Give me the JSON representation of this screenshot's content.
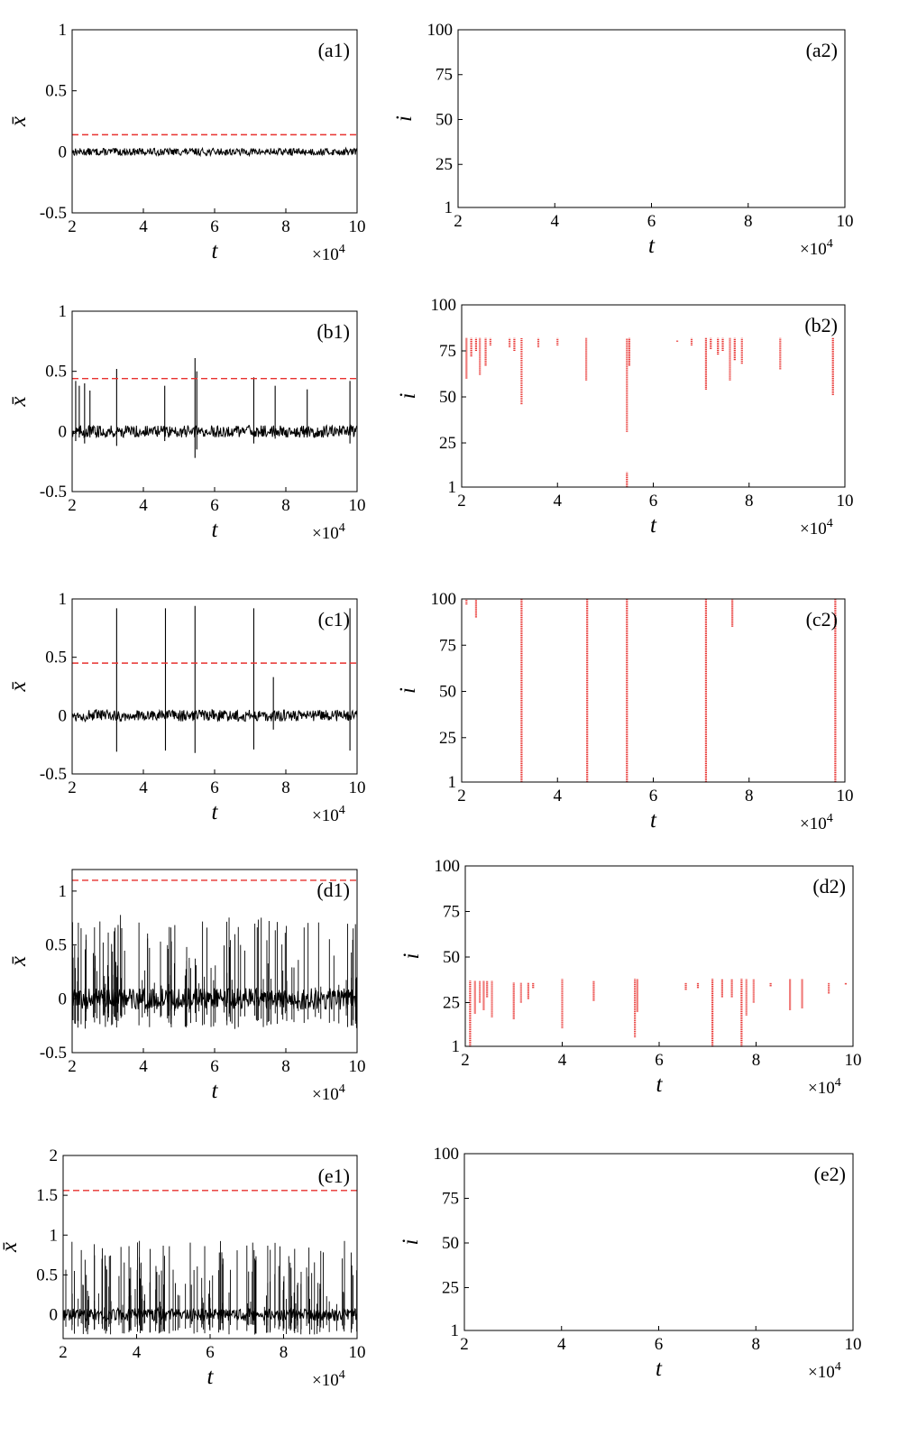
{
  "figure": {
    "signal_color": "#000000",
    "threshold_color": "#e8312f",
    "event_color": "#e8312f"
  },
  "chart_data": [
    {
      "id": "a1",
      "type": "line",
      "label": "(a1)",
      "xlabel": "t",
      "ylabel": "x̄",
      "x_multiplier": "×10",
      "x_multiplier_exp": "4",
      "xlim": [
        2,
        10
      ],
      "ylim": [
        -0.5,
        1
      ],
      "xticks": [
        "2",
        "4",
        "6",
        "8",
        "10"
      ],
      "xtick_values": [
        2,
        4,
        6,
        8,
        10
      ],
      "yticks": [
        "-0.5",
        "0",
        "0.5",
        "1"
      ],
      "ytick_values": [
        -0.5,
        0,
        0.5,
        1
      ],
      "threshold": 0.14,
      "noise": 0.03,
      "spikes": []
    },
    {
      "id": "a2",
      "type": "scatter",
      "label": "(a2)",
      "xlabel": "t",
      "ylabel": "i",
      "x_multiplier": "×10",
      "x_multiplier_exp": "4",
      "xlim": [
        2,
        10
      ],
      "ylim": [
        1,
        100
      ],
      "xticks": [
        "2",
        "4",
        "6",
        "8",
        "10"
      ],
      "xtick_values": [
        2,
        4,
        6,
        8,
        10
      ],
      "yticks": [
        "1",
        "25",
        "50",
        "75",
        "100"
      ],
      "ytick_values": [
        1,
        25,
        50,
        75,
        100
      ],
      "events": []
    },
    {
      "id": "b1",
      "type": "line",
      "label": "(b1)",
      "xlabel": "t",
      "ylabel": "x̄",
      "x_multiplier": "×10",
      "x_multiplier_exp": "4",
      "xlim": [
        2,
        10
      ],
      "ylim": [
        -0.5,
        1
      ],
      "xticks": [
        "2",
        "4",
        "6",
        "8",
        "10"
      ],
      "xtick_values": [
        2,
        4,
        6,
        8,
        10
      ],
      "yticks": [
        "-0.5",
        "0",
        "0.5",
        "1"
      ],
      "ytick_values": [
        -0.5,
        0,
        0.5,
        1
      ],
      "threshold": 0.44,
      "noise": 0.05,
      "spikes": [
        [
          2.1,
          0.42,
          -0.08
        ],
        [
          2.2,
          0.38,
          -0.05
        ],
        [
          2.35,
          0.4,
          -0.1
        ],
        [
          2.5,
          0.34,
          -0.05
        ],
        [
          3.25,
          0.52,
          -0.12
        ],
        [
          4.6,
          0.38,
          -0.08
        ],
        [
          5.45,
          0.61,
          -0.22
        ],
        [
          5.5,
          0.5,
          -0.15
        ],
        [
          7.1,
          0.45,
          -0.1
        ],
        [
          7.7,
          0.38,
          -0.06
        ],
        [
          8.6,
          0.35,
          -0.05
        ],
        [
          9.8,
          0.42,
          -0.1
        ]
      ]
    },
    {
      "id": "b2",
      "type": "scatter",
      "label": "(b2)",
      "xlabel": "t",
      "ylabel": "i",
      "x_multiplier": "×10",
      "x_multiplier_exp": "4",
      "xlim": [
        2,
        10
      ],
      "ylim": [
        1,
        100
      ],
      "xticks": [
        "2",
        "4",
        "6",
        "8",
        "10"
      ],
      "xtick_values": [
        2,
        4,
        6,
        8,
        10
      ],
      "yticks": [
        "1",
        "25",
        "50",
        "75",
        "100"
      ],
      "ytick_values": [
        1,
        25,
        50,
        75,
        100
      ],
      "events": [
        [
          2.1,
          60,
          82
        ],
        [
          2.2,
          72,
          82
        ],
        [
          2.3,
          75,
          82
        ],
        [
          2.38,
          62,
          82
        ],
        [
          2.5,
          67,
          82
        ],
        [
          2.6,
          78,
          82
        ],
        [
          3.0,
          77,
          82
        ],
        [
          3.1,
          75,
          82
        ],
        [
          3.25,
          46,
          82
        ],
        [
          3.6,
          77,
          82
        ],
        [
          4.0,
          78,
          82
        ],
        [
          4.6,
          59,
          82
        ],
        [
          5.45,
          31,
          82
        ],
        [
          5.5,
          67,
          82
        ],
        [
          5.45,
          1,
          9
        ],
        [
          6.5,
          80,
          81
        ],
        [
          6.8,
          78,
          82
        ],
        [
          7.1,
          54,
          82
        ],
        [
          7.2,
          76,
          82
        ],
        [
          7.35,
          73,
          82
        ],
        [
          7.45,
          75,
          82
        ],
        [
          7.6,
          59,
          82
        ],
        [
          7.7,
          70,
          82
        ],
        [
          7.85,
          68,
          82
        ],
        [
          8.65,
          65,
          82
        ],
        [
          9.75,
          51,
          82
        ]
      ]
    },
    {
      "id": "c1",
      "type": "line",
      "label": "(c1)",
      "xlabel": "t",
      "ylabel": "x̄",
      "x_multiplier": "×10",
      "x_multiplier_exp": "4",
      "xlim": [
        2,
        10
      ],
      "ylim": [
        -0.5,
        1
      ],
      "xticks": [
        "2",
        "4",
        "6",
        "8",
        "10"
      ],
      "xtick_values": [
        2,
        4,
        6,
        8,
        10
      ],
      "yticks": [
        "-0.5",
        "0",
        "0.5",
        "1"
      ],
      "ytick_values": [
        -0.5,
        0,
        0.5,
        1
      ],
      "threshold": 0.45,
      "noise": 0.05,
      "spikes": [
        [
          3.25,
          0.92,
          -0.31
        ],
        [
          4.62,
          0.92,
          -0.3
        ],
        [
          5.45,
          0.94,
          -0.32
        ],
        [
          7.1,
          0.92,
          -0.29
        ],
        [
          7.65,
          0.33,
          -0.12
        ],
        [
          9.8,
          0.92,
          -0.3
        ]
      ]
    },
    {
      "id": "c2",
      "type": "scatter",
      "label": "(c2)",
      "xlabel": "t",
      "ylabel": "i",
      "x_multiplier": "×10",
      "x_multiplier_exp": "4",
      "xlim": [
        2,
        10
      ],
      "ylim": [
        1,
        100
      ],
      "xticks": [
        "2",
        "4",
        "6",
        "8",
        "10"
      ],
      "xtick_values": [
        2,
        4,
        6,
        8,
        10
      ],
      "yticks": [
        "1",
        "25",
        "50",
        "75",
        "100"
      ],
      "ytick_values": [
        1,
        25,
        50,
        75,
        100
      ],
      "events": [
        [
          2.1,
          97,
          100
        ],
        [
          2.3,
          90,
          100
        ],
        [
          3.25,
          1,
          100
        ],
        [
          4.62,
          1,
          100
        ],
        [
          5.45,
          1,
          100
        ],
        [
          7.1,
          1,
          100
        ],
        [
          7.65,
          85,
          100
        ],
        [
          9.8,
          1,
          100
        ]
      ]
    },
    {
      "id": "d1",
      "type": "line",
      "label": "(d1)",
      "xlabel": "t",
      "ylabel": "x̄",
      "x_multiplier": "×10",
      "x_multiplier_exp": "4",
      "xlim": [
        2,
        10
      ],
      "ylim": [
        -0.5,
        1.2
      ],
      "xticks": [
        "2",
        "4",
        "6",
        "8",
        "10"
      ],
      "xtick_values": [
        2,
        4,
        6,
        8,
        10
      ],
      "yticks": [
        "-0.5",
        "0",
        "0.5",
        "1"
      ],
      "ytick_values": [
        -0.5,
        0,
        0.5,
        1
      ],
      "threshold": 1.1,
      "noise": 0.1,
      "spike_rate": 120,
      "spike_max": 0.78,
      "spike_min": -0.28,
      "spikes": []
    },
    {
      "id": "d2",
      "type": "scatter",
      "label": "(d2)",
      "xlabel": "t",
      "ylabel": "i",
      "x_multiplier": "×10",
      "x_multiplier_exp": "4",
      "xlim": [
        2,
        10
      ],
      "ylim": [
        1,
        100
      ],
      "xticks": [
        "2",
        "4",
        "6",
        "8",
        "10"
      ],
      "xtick_values": [
        2,
        4,
        6,
        8,
        10
      ],
      "yticks": [
        "1",
        "25",
        "50",
        "75",
        "100"
      ],
      "ytick_values": [
        1,
        25,
        50,
        75,
        100
      ],
      "events": [
        [
          2.1,
          1,
          37
        ],
        [
          2.2,
          19,
          37
        ],
        [
          2.3,
          25,
          37
        ],
        [
          2.38,
          21,
          37
        ],
        [
          2.45,
          28,
          37
        ],
        [
          2.55,
          17,
          37
        ],
        [
          3.0,
          16,
          36
        ],
        [
          3.15,
          25,
          36
        ],
        [
          3.3,
          27,
          36
        ],
        [
          3.4,
          33,
          36
        ],
        [
          4.0,
          11,
          38
        ],
        [
          4.65,
          26,
          37
        ],
        [
          5.5,
          6,
          38
        ],
        [
          5.55,
          20,
          38
        ],
        [
          6.55,
          32,
          36
        ],
        [
          6.8,
          33,
          36
        ],
        [
          7.1,
          1,
          38
        ],
        [
          7.3,
          28,
          38
        ],
        [
          7.5,
          28,
          38
        ],
        [
          7.7,
          1,
          38
        ],
        [
          7.8,
          18,
          38
        ],
        [
          7.95,
          25,
          38
        ],
        [
          8.3,
          34,
          36
        ],
        [
          8.7,
          21,
          38
        ],
        [
          8.95,
          22,
          38
        ],
        [
          9.5,
          30,
          36
        ],
        [
          9.85,
          35,
          36
        ]
      ]
    },
    {
      "id": "e1",
      "type": "line",
      "label": "(e1)",
      "xlabel": "t",
      "ylabel": "x̄",
      "x_multiplier": "×10",
      "x_multiplier_exp": "4",
      "xlim": [
        2,
        10
      ],
      "ylim": [
        -0.3,
        2
      ],
      "xticks": [
        "2",
        "4",
        "6",
        "8",
        "10"
      ],
      "xtick_values": [
        2,
        4,
        6,
        8,
        10
      ],
      "yticks": [
        "0",
        "0.5",
        "1",
        "1.5",
        "2"
      ],
      "ytick_values": [
        0,
        0.5,
        1,
        1.5,
        2
      ],
      "threshold": 1.56,
      "noise": 0.08,
      "spike_rate": 150,
      "spike_max": 0.93,
      "spike_min": -0.25,
      "spikes": []
    },
    {
      "id": "e2",
      "type": "scatter",
      "label": "(e2)",
      "xlabel": "t",
      "ylabel": "i",
      "x_multiplier": "×10",
      "x_multiplier_exp": "4",
      "xlim": [
        2,
        10
      ],
      "ylim": [
        1,
        100
      ],
      "xticks": [
        "2",
        "4",
        "6",
        "8",
        "10"
      ],
      "xtick_values": [
        2,
        4,
        6,
        8,
        10
      ],
      "yticks": [
        "1",
        "25",
        "50",
        "75",
        "100"
      ],
      "ytick_values": [
        1,
        25,
        50,
        75,
        100
      ],
      "events": []
    }
  ]
}
